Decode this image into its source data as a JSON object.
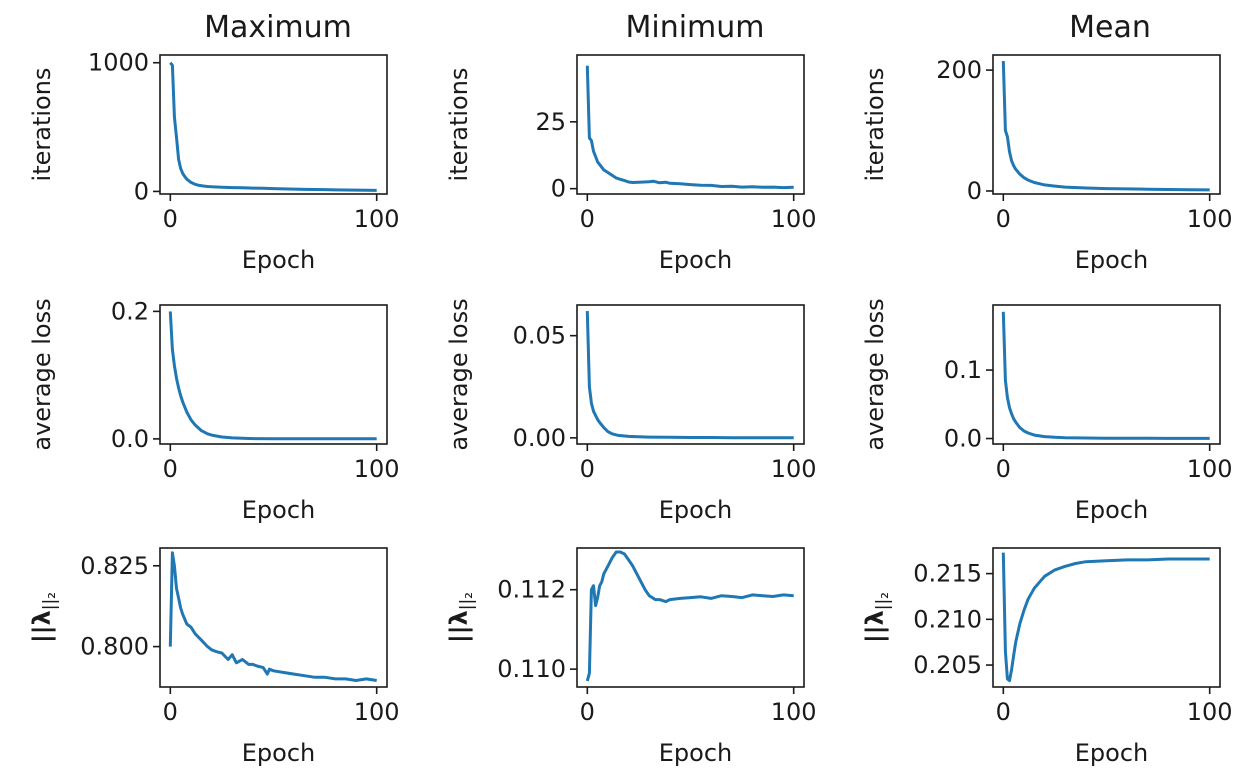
{
  "figure": {
    "column_titles": [
      "Maximum",
      "Minimum",
      "Mean"
    ],
    "line_color": "#1f77b4"
  },
  "chart_data": [
    {
      "type": "line",
      "title": "Maximum",
      "xlabel": "Epoch",
      "ylabel": "iterations",
      "xlim": [
        -5,
        105
      ],
      "ylim": [
        -20,
        1060
      ],
      "xticks": [
        0,
        100
      ],
      "xtick_labels": [
        "0",
        "100"
      ],
      "yticks": [
        0,
        1000
      ],
      "ytick_labels": [
        "0",
        "1000"
      ],
      "ylabel_math": false,
      "series": [
        {
          "x": [
            0,
            1,
            2,
            3,
            4,
            5,
            6,
            7,
            8,
            10,
            12,
            14,
            16,
            18,
            20,
            25,
            30,
            35,
            40,
            45,
            50,
            55,
            60,
            65,
            70,
            75,
            80,
            85,
            90,
            95,
            100
          ],
          "y": [
            1000,
            980,
            580,
            420,
            250,
            180,
            140,
            115,
            95,
            70,
            55,
            47,
            42,
            38,
            36,
            32,
            30,
            28,
            26,
            24,
            22,
            20,
            18,
            16,
            15,
            14,
            12,
            11,
            10,
            9,
            8
          ]
        }
      ]
    },
    {
      "type": "line",
      "title": "Minimum",
      "xlabel": "Epoch",
      "ylabel": "iterations",
      "xlim": [
        -5,
        105
      ],
      "ylim": [
        -2,
        50
      ],
      "xticks": [
        0,
        100
      ],
      "xtick_labels": [
        "0",
        "100"
      ],
      "yticks": [
        0,
        25
      ],
      "ytick_labels": [
        "0",
        "25"
      ],
      "ylabel_math": false,
      "series": [
        {
          "x": [
            0,
            1,
            2,
            3,
            4,
            5,
            6,
            7,
            8,
            10,
            12,
            14,
            16,
            18,
            20,
            22,
            25,
            30,
            32,
            35,
            38,
            40,
            45,
            50,
            55,
            60,
            65,
            70,
            75,
            80,
            85,
            90,
            95,
            100
          ],
          "y": [
            46,
            19,
            18,
            14,
            12,
            10,
            9,
            8,
            7,
            6,
            5,
            4,
            3.5,
            3,
            2.5,
            2.3,
            2.4,
            2.6,
            2.8,
            2.2,
            2.4,
            2,
            1.8,
            1.5,
            1.3,
            1.2,
            0.8,
            0.9,
            0.6,
            0.7,
            0.5,
            0.6,
            0.4,
            0.5
          ]
        }
      ]
    },
    {
      "type": "line",
      "title": "Mean",
      "xlabel": "Epoch",
      "ylabel": "iterations",
      "xlim": [
        -5,
        105
      ],
      "ylim": [
        -5,
        225
      ],
      "xticks": [
        0,
        100
      ],
      "xtick_labels": [
        "0",
        "100"
      ],
      "yticks": [
        0,
        200
      ],
      "ytick_labels": [
        "0",
        "200"
      ],
      "ylabel_math": false,
      "series": [
        {
          "x": [
            0,
            1,
            2,
            3,
            4,
            5,
            6,
            8,
            10,
            12,
            15,
            20,
            25,
            30,
            40,
            50,
            60,
            70,
            80,
            90,
            100
          ],
          "y": [
            215,
            100,
            90,
            65,
            50,
            42,
            36,
            28,
            22,
            18,
            14,
            10,
            8,
            6.5,
            5,
            4,
            3.5,
            3,
            2.5,
            2,
            1.8
          ]
        }
      ]
    },
    {
      "type": "line",
      "title": "",
      "xlabel": "Epoch",
      "ylabel": "average loss",
      "xlim": [
        -5,
        105
      ],
      "ylim": [
        -0.008,
        0.21
      ],
      "xticks": [
        0,
        100
      ],
      "xtick_labels": [
        "0",
        "100"
      ],
      "yticks": [
        0.0,
        0.2
      ],
      "ytick_labels": [
        "0.0",
        "0.2"
      ],
      "ylabel_math": false,
      "series": [
        {
          "x": [
            0,
            1,
            2,
            3,
            4,
            5,
            6,
            8,
            10,
            12,
            15,
            18,
            20,
            25,
            30,
            35,
            40,
            50,
            60,
            70,
            80,
            90,
            100
          ],
          "y": [
            0.2,
            0.14,
            0.115,
            0.095,
            0.08,
            0.068,
            0.058,
            0.042,
            0.03,
            0.022,
            0.013,
            0.008,
            0.006,
            0.003,
            0.0015,
            0.001,
            0.0005,
            0.0003,
            0.0002,
            0.0001,
            0.0001,
            0.0001,
            0.0001
          ]
        }
      ]
    },
    {
      "type": "line",
      "title": "",
      "xlabel": "Epoch",
      "ylabel": "average loss",
      "xlim": [
        -5,
        105
      ],
      "ylim": [
        -0.003,
        0.065
      ],
      "xticks": [
        0,
        100
      ],
      "xtick_labels": [
        "0",
        "100"
      ],
      "yticks": [
        0.0,
        0.05
      ],
      "ytick_labels": [
        "0.00",
        "0.05"
      ],
      "ylabel_math": false,
      "series": [
        {
          "x": [
            0,
            1,
            2,
            3,
            4,
            5,
            6,
            8,
            10,
            12,
            15,
            20,
            25,
            30,
            40,
            50,
            60,
            70,
            80,
            90,
            100
          ],
          "y": [
            0.062,
            0.025,
            0.017,
            0.013,
            0.011,
            0.009,
            0.0075,
            0.005,
            0.003,
            0.002,
            0.0012,
            0.0007,
            0.0005,
            0.0004,
            0.0003,
            0.0002,
            0.0002,
            0.0001,
            0.0001,
            0.0001,
            0.0001
          ]
        }
      ]
    },
    {
      "type": "line",
      "title": "",
      "xlabel": "Epoch",
      "ylabel": "average loss",
      "xlim": [
        -5,
        105
      ],
      "ylim": [
        -0.008,
        0.195
      ],
      "xticks": [
        0,
        100
      ],
      "xtick_labels": [
        "0",
        "100"
      ],
      "yticks": [
        0.0,
        0.1
      ],
      "ytick_labels": [
        "0.0",
        "0.1"
      ],
      "ylabel_math": false,
      "series": [
        {
          "x": [
            0,
            1,
            2,
            3,
            4,
            5,
            6,
            8,
            10,
            12,
            15,
            20,
            25,
            30,
            40,
            50,
            60,
            70,
            80,
            90,
            100
          ],
          "y": [
            0.185,
            0.085,
            0.06,
            0.045,
            0.036,
            0.029,
            0.024,
            0.016,
            0.011,
            0.008,
            0.005,
            0.0028,
            0.0018,
            0.0012,
            0.0007,
            0.0005,
            0.0004,
            0.0003,
            0.0002,
            0.0002,
            0.0002
          ]
        }
      ]
    },
    {
      "type": "line",
      "title": "",
      "xlabel": "Epoch",
      "ylabel": "||λ||₂",
      "xlim": [
        -5,
        105
      ],
      "ylim": [
        0.7875,
        0.8305
      ],
      "xticks": [
        0,
        100
      ],
      "xtick_labels": [
        "0",
        "100"
      ],
      "yticks": [
        0.8,
        0.825
      ],
      "ytick_labels": [
        "0.800",
        "0.825"
      ],
      "ylabel_math": true,
      "series": [
        {
          "x": [
            0,
            1,
            2,
            3,
            4,
            5,
            6,
            8,
            10,
            12,
            15,
            18,
            20,
            22,
            25,
            28,
            30,
            32,
            35,
            38,
            40,
            42,
            45,
            47,
            48,
            50,
            55,
            60,
            65,
            70,
            75,
            80,
            85,
            90,
            95,
            100
          ],
          "y": [
            0.8,
            0.829,
            0.825,
            0.818,
            0.815,
            0.812,
            0.81,
            0.807,
            0.806,
            0.804,
            0.802,
            0.8,
            0.799,
            0.7985,
            0.798,
            0.796,
            0.7975,
            0.795,
            0.796,
            0.7945,
            0.7945,
            0.794,
            0.7935,
            0.7915,
            0.793,
            0.7925,
            0.792,
            0.7915,
            0.791,
            0.7905,
            0.7905,
            0.79,
            0.79,
            0.7895,
            0.79,
            0.7895
          ]
        }
      ]
    },
    {
      "type": "line",
      "title": "",
      "xlabel": "Epoch",
      "ylabel": "||λ||₂",
      "xlim": [
        -5,
        105
      ],
      "ylim": [
        0.10955,
        0.11305
      ],
      "xticks": [
        0,
        100
      ],
      "xtick_labels": [
        "0",
        "100"
      ],
      "yticks": [
        0.11,
        0.112
      ],
      "ytick_labels": [
        "0.110",
        "0.112"
      ],
      "ylabel_math": true,
      "series": [
        {
          "x": [
            0,
            1,
            2,
            3,
            4,
            5,
            6,
            7,
            8,
            10,
            12,
            14,
            16,
            18,
            20,
            22,
            25,
            28,
            30,
            33,
            35,
            38,
            40,
            45,
            50,
            55,
            60,
            65,
            70,
            75,
            80,
            85,
            90,
            95,
            100
          ],
          "y": [
            0.1097,
            0.1099,
            0.112,
            0.1121,
            0.1116,
            0.1118,
            0.1121,
            0.1122,
            0.1124,
            0.1126,
            0.1128,
            0.11295,
            0.11295,
            0.1129,
            0.11275,
            0.1126,
            0.1123,
            0.112,
            0.11185,
            0.11175,
            0.11175,
            0.1117,
            0.11175,
            0.11178,
            0.1118,
            0.11182,
            0.11178,
            0.11185,
            0.11183,
            0.1118,
            0.11187,
            0.11185,
            0.11183,
            0.11187,
            0.11185
          ]
        }
      ]
    },
    {
      "type": "line",
      "title": "",
      "xlabel": "Epoch",
      "ylabel": "||λ||₂",
      "xlim": [
        -5,
        105
      ],
      "ylim": [
        0.2026,
        0.2178
      ],
      "xticks": [
        0,
        100
      ],
      "xtick_labels": [
        "0",
        "100"
      ],
      "yticks": [
        0.205,
        0.21,
        0.215
      ],
      "ytick_labels": [
        "0.205",
        "0.210",
        "0.215"
      ],
      "ylabel_math": true,
      "series": [
        {
          "x": [
            0,
            1,
            2,
            3,
            4,
            5,
            6,
            8,
            10,
            12,
            15,
            20,
            25,
            30,
            35,
            40,
            50,
            60,
            70,
            80,
            90,
            100
          ],
          "y": [
            0.2173,
            0.2065,
            0.2035,
            0.2033,
            0.2045,
            0.206,
            0.2075,
            0.2095,
            0.211,
            0.2122,
            0.2134,
            0.2147,
            0.2154,
            0.2158,
            0.2161,
            0.2163,
            0.2164,
            0.2165,
            0.2165,
            0.2166,
            0.2166,
            0.2166
          ]
        }
      ]
    }
  ]
}
